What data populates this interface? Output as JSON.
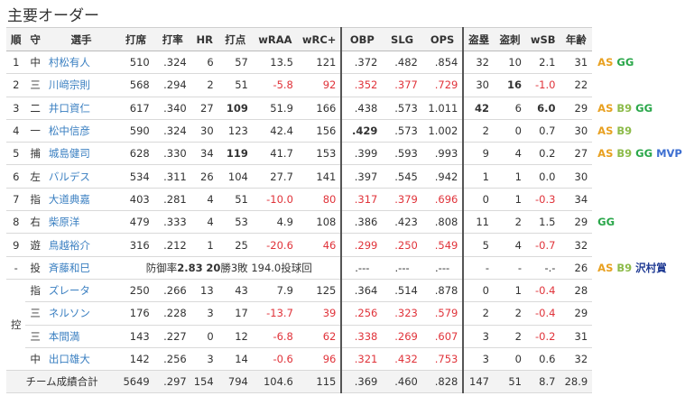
{
  "title": "主要オーダー",
  "headers": [
    "順",
    "守",
    "選手",
    "打席",
    "打率",
    "HR",
    "打点",
    "wRAA",
    "wRC+",
    "OBP",
    "SLG",
    "OPS",
    "盗塁",
    "盗刺",
    "wSB",
    "年齢"
  ],
  "rows": [
    {
      "order": "1",
      "pos": "中",
      "name": "村松有人",
      "pa": "510",
      "avg": "0.324",
      "hr": "6",
      "rbi": "57",
      "wraa": "13.5",
      "wrc": "121",
      "obp": "0.372",
      "slg": "0.482",
      "ops": "0.854",
      "sb": "32",
      "cs": "10",
      "wsb": "2.1",
      "age": "31",
      "awards": [
        {
          "t": "AS",
          "c": "aw-as"
        },
        {
          "t": "GG",
          "c": "aw-gg"
        }
      ]
    },
    {
      "order": "2",
      "pos": "三",
      "name": "川﨑宗則",
      "pa": "568",
      "avg": "0.294",
      "hr": "2",
      "rbi": "51",
      "wraa": "-5.8",
      "wrc": "92",
      "obp": "0.352",
      "slg": "0.377",
      "ops": "0.729",
      "sb": "30",
      "cs": "16",
      "wsb": "-1.0",
      "age": "22",
      "awards": []
    },
    {
      "order": "3",
      "pos": "二",
      "name": "井口資仁",
      "pa": "617",
      "avg": "0.340",
      "hr": "27",
      "rbi": "109",
      "wraa": "51.9",
      "wrc": "166",
      "obp": "0.438",
      "slg": "0.573",
      "ops": "1.011",
      "sb": "42",
      "cs": "6",
      "wsb": "6.0",
      "age": "29",
      "awards": [
        {
          "t": "AS",
          "c": "aw-as"
        },
        {
          "t": "B9",
          "c": "aw-b9"
        },
        {
          "t": "GG",
          "c": "aw-gg"
        }
      ]
    },
    {
      "order": "4",
      "pos": "一",
      "name": "松中信彦",
      "pa": "590",
      "avg": "0.324",
      "hr": "30",
      "rbi": "123",
      "wraa": "42.4",
      "wrc": "156",
      "obp": "0.429",
      "slg": "0.573",
      "ops": "1.002",
      "sb": "2",
      "cs": "0",
      "wsb": "0.7",
      "age": "30",
      "awards": [
        {
          "t": "AS",
          "c": "aw-as"
        },
        {
          "t": "B9",
          "c": "aw-b9"
        }
      ]
    },
    {
      "order": "5",
      "pos": "捕",
      "name": "城島健司",
      "pa": "628",
      "avg": "0.330",
      "hr": "34",
      "rbi": "119",
      "wraa": "41.7",
      "wrc": "153",
      "obp": "0.399",
      "slg": "0.593",
      "ops": "0.993",
      "sb": "9",
      "cs": "4",
      "wsb": "0.2",
      "age": "27",
      "awards": [
        {
          "t": "AS",
          "c": "aw-as"
        },
        {
          "t": "B9",
          "c": "aw-b9"
        },
        {
          "t": "GG",
          "c": "aw-gg"
        },
        {
          "t": "MVP",
          "c": "aw-mvp"
        }
      ]
    },
    {
      "order": "6",
      "pos": "左",
      "name": "バルデス",
      "pa": "534",
      "avg": "0.311",
      "hr": "26",
      "rbi": "104",
      "wraa": "27.7",
      "wrc": "141",
      "obp": "0.397",
      "slg": "0.545",
      "ops": "0.942",
      "sb": "1",
      "cs": "1",
      "wsb": "0.0",
      "age": "30",
      "awards": []
    },
    {
      "order": "7",
      "pos": "指",
      "name": "大道典嘉",
      "pa": "403",
      "avg": "0.281",
      "hr": "4",
      "rbi": "51",
      "wraa": "-10.0",
      "wrc": "80",
      "obp": "0.317",
      "slg": "0.379",
      "ops": "0.696",
      "sb": "0",
      "cs": "1",
      "wsb": "-0.3",
      "age": "34",
      "awards": []
    },
    {
      "order": "8",
      "pos": "右",
      "name": "柴原洋",
      "pa": "479",
      "avg": "0.333",
      "hr": "4",
      "rbi": "53",
      "wraa": "4.9",
      "wrc": "108",
      "obp": "0.386",
      "slg": "0.423",
      "ops": "0.808",
      "sb": "11",
      "cs": "2",
      "wsb": "1.5",
      "age": "29",
      "awards": [
        {
          "t": "GG",
          "c": "aw-gg"
        }
      ]
    },
    {
      "order": "9",
      "pos": "遊",
      "name": "鳥越裕介",
      "pa": "316",
      "avg": "0.212",
      "hr": "1",
      "rbi": "25",
      "wraa": "-20.6",
      "wrc": "46",
      "obp": "0.299",
      "slg": "0.250",
      "ops": "0.549",
      "sb": "5",
      "cs": "4",
      "wsb": "-0.7",
      "age": "32",
      "awards": []
    }
  ],
  "pitcher": {
    "order": "-",
    "pos": "投",
    "name": "斉藤和巳",
    "pre": "防御率",
    "era": "2.83",
    "wins": "20",
    "mid": "勝3敗 194.0投球回",
    "obp": ".---",
    "slg": ".---",
    "ops": ".---",
    "sb": "-",
    "cs": "-",
    "wsb": "-.-",
    "age": "26",
    "awards": [
      {
        "t": "AS",
        "c": "aw-as"
      },
      {
        "t": "B9",
        "c": "aw-b9"
      },
      {
        "t": "沢村賞",
        "c": "aw-sawa"
      }
    ]
  },
  "bench_label": "控",
  "bench": [
    {
      "pos": "指",
      "name": "ズレータ",
      "pa": "250",
      "avg": "0.266",
      "hr": "13",
      "rbi": "43",
      "wraa": "7.9",
      "wrc": "125",
      "obp": "0.364",
      "slg": "0.514",
      "ops": "0.878",
      "sb": "0",
      "cs": "1",
      "wsb": "-0.4",
      "age": "28"
    },
    {
      "pos": "三",
      "name": "ネルソン",
      "pa": "176",
      "avg": "0.228",
      "hr": "3",
      "rbi": "17",
      "wraa": "-13.7",
      "wrc": "39",
      "obp": "0.256",
      "slg": "0.323",
      "ops": "0.579",
      "sb": "2",
      "cs": "2",
      "wsb": "-0.4",
      "age": "29"
    },
    {
      "pos": "三",
      "name": "本間満",
      "pa": "143",
      "avg": "0.227",
      "hr": "0",
      "rbi": "12",
      "wraa": "-6.8",
      "wrc": "62",
      "obp": "0.338",
      "slg": "0.269",
      "ops": "0.607",
      "sb": "3",
      "cs": "2",
      "wsb": "-0.2",
      "age": "31"
    },
    {
      "pos": "中",
      "name": "出口雄大",
      "pa": "142",
      "avg": "0.256",
      "hr": "3",
      "rbi": "14",
      "wraa": "-0.6",
      "wrc": "96",
      "obp": "0.321",
      "slg": "0.432",
      "ops": "0.753",
      "sb": "3",
      "cs": "0",
      "wsb": "0.6",
      "age": "32"
    }
  ],
  "total": {
    "label": "チーム成績合計",
    "pa": "5649",
    "avg": "0.297",
    "hr": "154",
    "rbi": "794",
    "wraa": "104.6",
    "wrc": "115",
    "obp": "0.369",
    "slg": "0.460",
    "ops": "0.828",
    "sb": "147",
    "cs": "51",
    "wsb": "8.7",
    "age": "28.9"
  },
  "bold_cells": [
    "2.rbi",
    "3.obp",
    "4.rbi",
    "1.cs",
    "2.sb",
    "2.wsb"
  ],
  "colors": {
    "link": "#3a7fc1",
    "negative": "#e0333a",
    "header_bg": "#f3f3f3"
  }
}
